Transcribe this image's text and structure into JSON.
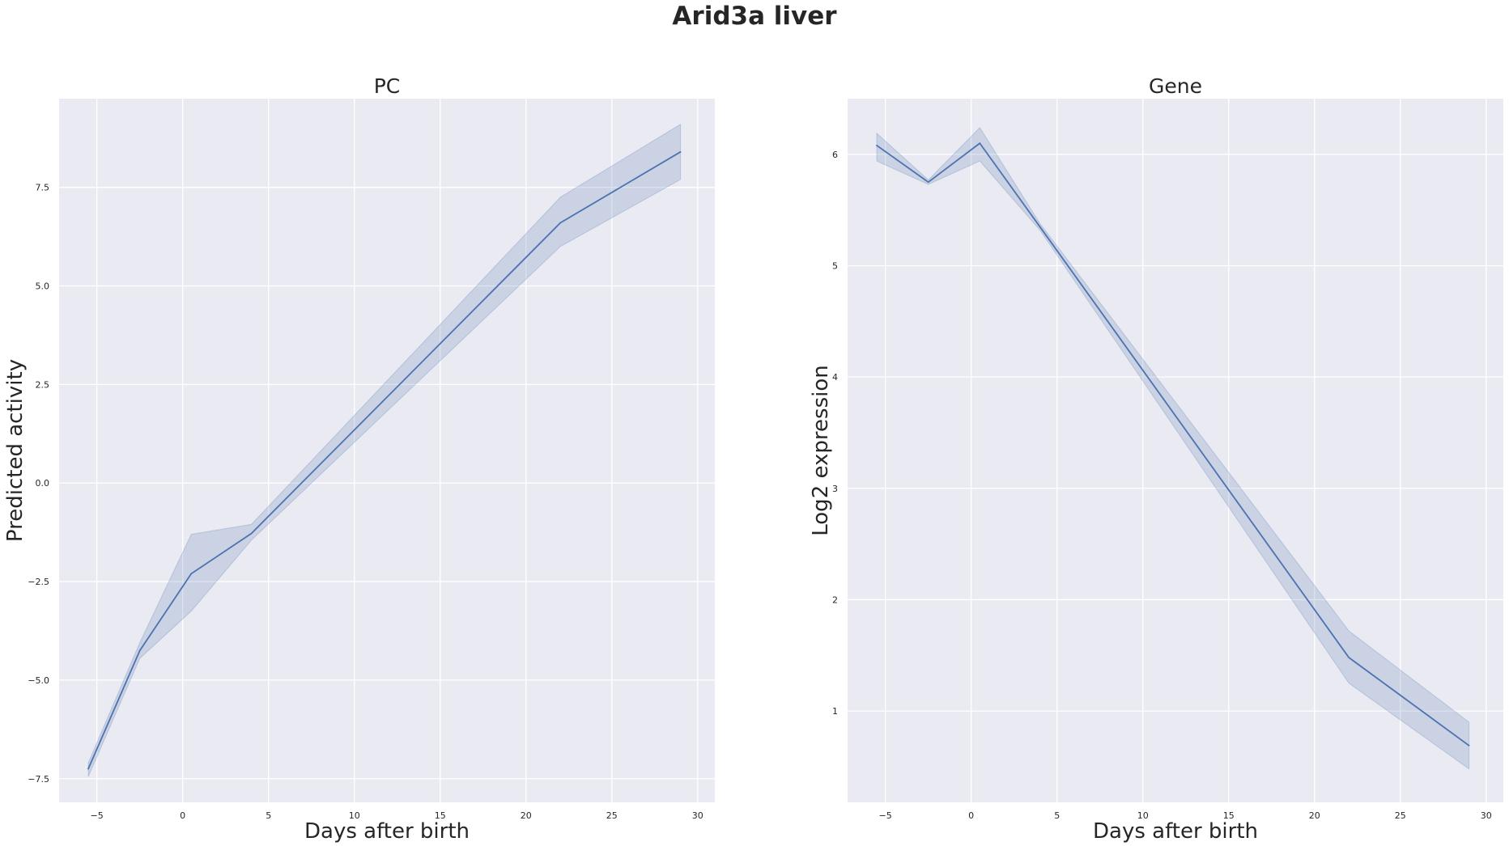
{
  "figure": {
    "title": "Arid3a liver"
  },
  "chart_data": [
    {
      "type": "line",
      "title": "PC",
      "xlabel": "Days after birth",
      "ylabel": "Predicted activity",
      "xlim": [
        -7.2,
        31.0
      ],
      "ylim": [
        -8.1,
        9.75
      ],
      "xticks": [
        -5,
        0,
        5,
        10,
        15,
        20,
        25,
        30
      ],
      "xtick_labels": [
        "−5",
        "0",
        "5",
        "10",
        "15",
        "20",
        "25",
        "30"
      ],
      "yticks": [
        -7.5,
        -5.0,
        -2.5,
        0.0,
        2.5,
        5.0,
        7.5
      ],
      "ytick_labels": [
        "−7.5",
        "−5.0",
        "−2.5",
        "0.0",
        "2.5",
        "5.0",
        "7.5"
      ],
      "grid": true,
      "series": [
        {
          "color": "#4c72b0",
          "x": [
            -5.5,
            -2.5,
            0.5,
            4.0,
            22.0,
            29.0
          ],
          "y": [
            -7.25,
            -4.25,
            -2.3,
            -1.28,
            6.6,
            8.4
          ],
          "ci_lower": [
            -7.45,
            -4.45,
            -3.25,
            -1.45,
            6.0,
            7.7
          ],
          "ci_upper": [
            -7.1,
            -4.05,
            -1.3,
            -1.05,
            7.25,
            9.1
          ]
        }
      ]
    },
    {
      "type": "line",
      "title": "Gene",
      "xlabel": "Days after birth",
      "ylabel": "Log2 expression",
      "xlim": [
        -7.2,
        31.0
      ],
      "ylim": [
        0.18,
        6.5
      ],
      "xticks": [
        -5,
        0,
        5,
        10,
        15,
        20,
        25,
        30
      ],
      "xtick_labels": [
        "−5",
        "0",
        "5",
        "10",
        "15",
        "20",
        "25",
        "30"
      ],
      "yticks": [
        1,
        2,
        3,
        4,
        5,
        6
      ],
      "ytick_labels": [
        "1",
        "2",
        "3",
        "4",
        "5",
        "6"
      ],
      "grid": true,
      "series": [
        {
          "color": "#4c72b0",
          "x": [
            -5.5,
            -2.5,
            0.5,
            4.0,
            22.0,
            29.0
          ],
          "y": [
            6.08,
            5.75,
            6.1,
            5.35,
            1.48,
            0.69
          ],
          "ci_lower": [
            5.94,
            5.73,
            5.94,
            5.32,
            1.25,
            0.48
          ],
          "ci_upper": [
            6.19,
            5.77,
            6.24,
            5.38,
            1.72,
            0.9
          ]
        }
      ]
    }
  ]
}
